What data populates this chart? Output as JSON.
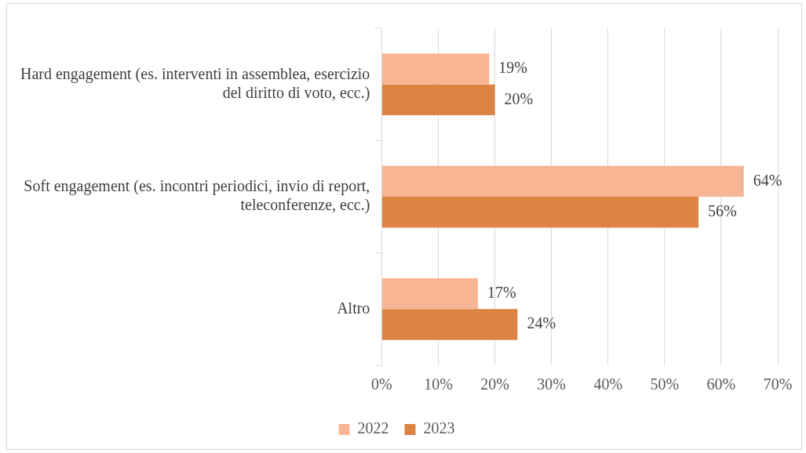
{
  "chart_data": {
    "type": "bar",
    "orientation": "horizontal",
    "categories": [
      "Hard engagement (es. interventi in assemblea, esercizio del diritto di voto, ecc.)",
      "Soft engagement (es. incontri periodici, invio di report, teleconferenze, ecc.)",
      "Altro"
    ],
    "series": [
      {
        "name": "2022",
        "color": "#f8b593",
        "values": [
          19,
          64,
          17
        ],
        "value_labels": [
          "19%",
          "64%",
          "17%"
        ]
      },
      {
        "name": "2023",
        "color": "#dd8444",
        "values": [
          20,
          56,
          24
        ],
        "value_labels": [
          "20%",
          "56%",
          "24%"
        ]
      }
    ],
    "xlim": [
      0,
      70
    ],
    "xticks": [
      {
        "value": 0,
        "label": "0%"
      },
      {
        "value": 10,
        "label": "10%"
      },
      {
        "value": 20,
        "label": "20%"
      },
      {
        "value": 30,
        "label": "30%"
      },
      {
        "value": 40,
        "label": "40%"
      },
      {
        "value": 50,
        "label": "50%"
      },
      {
        "value": 60,
        "label": "60%"
      },
      {
        "value": 70,
        "label": "70%"
      }
    ],
    "grid": "x",
    "legend": "bottom"
  }
}
